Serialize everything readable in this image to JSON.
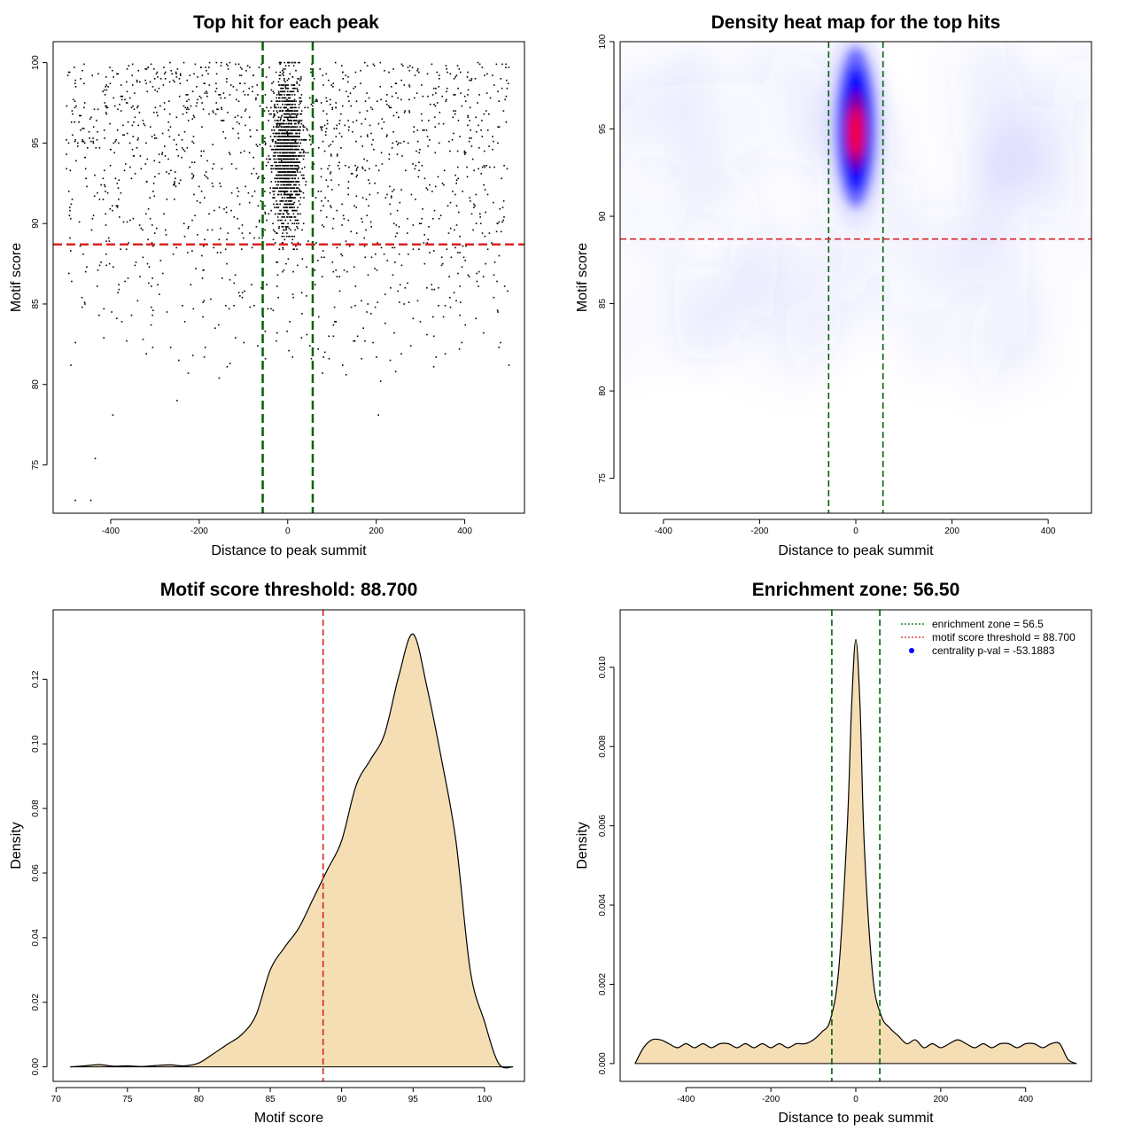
{
  "colors": {
    "threshold_line": "#dd2222",
    "zone_line": "#006400",
    "density_fill": "#f5deb3",
    "heat_low": "#ffffff",
    "heat_mid": "#0000ff",
    "heat_high": "#ff0000",
    "point": "#000000"
  },
  "chart_data": [
    {
      "id": "scatter",
      "type": "scatter",
      "title": "Top hit for each peak",
      "xlabel": "Distance to peak summit",
      "ylabel": "Motif score",
      "xlim": [
        -530,
        535
      ],
      "ylim": [
        72,
        101.3
      ],
      "xticks": [
        -400,
        -200,
        0,
        200,
        400
      ],
      "yticks": [
        75,
        80,
        85,
        90,
        95,
        100
      ],
      "threshold_y": 88.7,
      "zone_x": [
        -56.5,
        56.5
      ],
      "points_note": "approx. 3000 top-hit points; uniform background over [-500,500] x [80,100], dense column within |x|<50 at scores 88-100",
      "sample_points": [
        {
          "x": -480,
          "y": 72.8
        },
        {
          "x": -445,
          "y": 72.8
        },
        {
          "x": -435,
          "y": 75.4
        },
        {
          "x": -395,
          "y": 78.1
        },
        {
          "x": -250,
          "y": 79.0
        },
        {
          "x": 205,
          "y": 78.1
        },
        {
          "x": 210,
          "y": 80.2
        },
        {
          "x": 330,
          "y": 81.1
        },
        {
          "x": -490,
          "y": 81.2
        },
        {
          "x": -150,
          "y": 100.0
        },
        {
          "x": 0,
          "y": 100.0
        },
        {
          "x": 430,
          "y": 100.0
        }
      ]
    },
    {
      "id": "heatmap",
      "type": "heatmap",
      "title": "Density heat map for the top hits",
      "xlabel": "Distance to peak summit",
      "ylabel": "Motif score",
      "xlim": [
        -490,
        490
      ],
      "ylim": [
        73,
        100
      ],
      "xticks": [
        -400,
        -200,
        0,
        200,
        400
      ],
      "yticks": [
        75,
        80,
        85,
        90,
        95,
        100
      ],
      "threshold_y": 88.7,
      "zone_x": [
        -56.5,
        56.5
      ],
      "hotspot": {
        "x": 0,
        "y": 95
      }
    },
    {
      "id": "score_density",
      "type": "area",
      "title": "Motif score threshold: 88.700",
      "xlabel": "Motif score",
      "ylabel": "Density",
      "xlim": [
        69.8,
        102.8
      ],
      "ylim": [
        -0.0045,
        0.1415
      ],
      "xticks": [
        70,
        75,
        80,
        85,
        90,
        95,
        100
      ],
      "yticks": [
        0.0,
        0.02,
        0.04,
        0.06,
        0.08,
        0.1,
        0.12
      ],
      "ytick_labels": [
        "0.00",
        "0.02",
        "0.04",
        "0.06",
        "0.08",
        "0.10",
        "0.12"
      ],
      "threshold_x": 88.7,
      "x": [
        71,
        72,
        73,
        74,
        75,
        76,
        77,
        78,
        79,
        80,
        81,
        82,
        83,
        84,
        85,
        86,
        87,
        88,
        89,
        90,
        91,
        92,
        93,
        94,
        95,
        96,
        97,
        98,
        99,
        100,
        101,
        102
      ],
      "y": [
        0.0,
        0.0003,
        0.0007,
        0.0002,
        0.0003,
        0.0001,
        0.0004,
        0.0006,
        0.0003,
        0.0012,
        0.004,
        0.007,
        0.01,
        0.016,
        0.03,
        0.037,
        0.043,
        0.052,
        0.061,
        0.07,
        0.087,
        0.095,
        0.103,
        0.121,
        0.134,
        0.117,
        0.095,
        0.07,
        0.03,
        0.014,
        0.001,
        0.0
      ]
    },
    {
      "id": "distance_density",
      "type": "area",
      "title": "Enrichment zone: 56.50",
      "xlabel": "Distance to peak summit",
      "ylabel": "Density",
      "xlim": [
        -555,
        555
      ],
      "ylim": [
        -0.00045,
        0.01145
      ],
      "xticks": [
        -400,
        -200,
        0,
        200,
        400
      ],
      "yticks": [
        0.0,
        0.002,
        0.004,
        0.006,
        0.008,
        0.01
      ],
      "ytick_labels": [
        "0.000",
        "0.002",
        "0.004",
        "0.006",
        "0.008",
        "0.010"
      ],
      "zone_x": [
        -56.5,
        56.5
      ],
      "x": [
        -520,
        -500,
        -480,
        -460,
        -440,
        -420,
        -400,
        -380,
        -360,
        -340,
        -320,
        -300,
        -280,
        -260,
        -240,
        -220,
        -200,
        -180,
        -160,
        -140,
        -120,
        -100,
        -80,
        -60,
        -40,
        -20,
        -10,
        0,
        10,
        20,
        40,
        60,
        80,
        100,
        120,
        140,
        160,
        180,
        200,
        220,
        240,
        260,
        280,
        300,
        320,
        340,
        360,
        380,
        400,
        420,
        440,
        460,
        480,
        500,
        520
      ],
      "y": [
        0.0,
        0.0004,
        0.0006,
        0.0006,
        0.0005,
        0.0004,
        0.0005,
        0.0004,
        0.0005,
        0.0004,
        0.0005,
        0.0005,
        0.0004,
        0.0005,
        0.0004,
        0.0005,
        0.0004,
        0.0005,
        0.0004,
        0.0005,
        0.0005,
        0.0006,
        0.0008,
        0.0011,
        0.0024,
        0.006,
        0.009,
        0.0107,
        0.009,
        0.0055,
        0.0022,
        0.0012,
        0.0009,
        0.0007,
        0.0005,
        0.0006,
        0.0004,
        0.0005,
        0.0004,
        0.0005,
        0.0006,
        0.0005,
        0.0004,
        0.0005,
        0.0004,
        0.0005,
        0.0005,
        0.0004,
        0.0005,
        0.0005,
        0.0004,
        0.0005,
        0.0005,
        0.0001,
        0.0
      ],
      "legend": {
        "position": "top-right",
        "entries": [
          {
            "label": "enrichment zone = 56.5",
            "style": "dotted",
            "color": "#006400"
          },
          {
            "label": "motif score threshold = 88.700",
            "style": "dotted",
            "color": "#dd2222"
          },
          {
            "label": "centrality p-val = -53.1883",
            "style": "point",
            "color": "#0000ff"
          }
        ]
      }
    }
  ]
}
